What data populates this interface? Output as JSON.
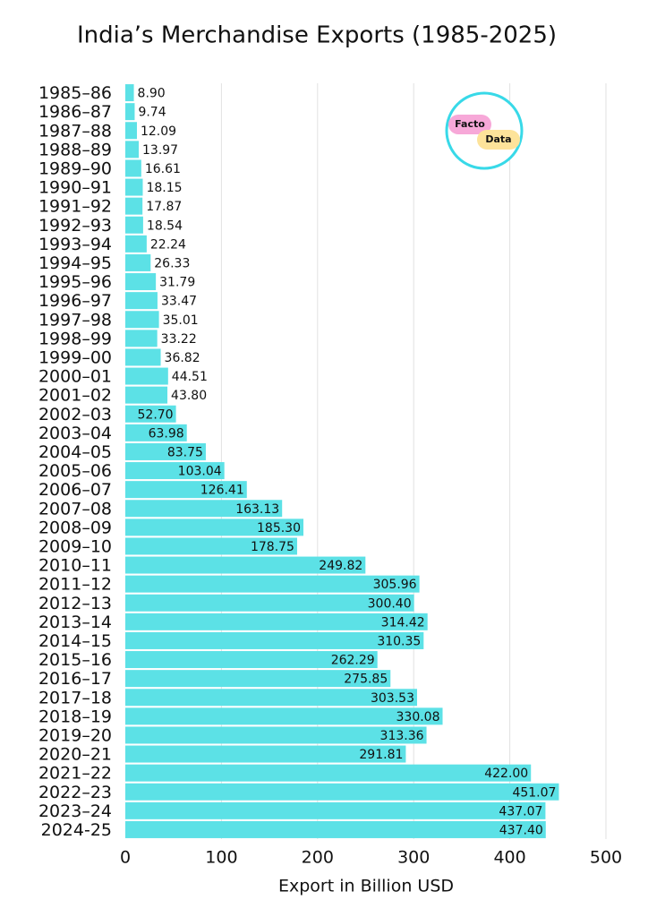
{
  "chart_data": {
    "type": "bar",
    "orientation": "horizontal",
    "title": "India’s Merchandise Exports (1985-2025)",
    "xlabel": "Export in Billion USD",
    "categories": [
      "1985–86",
      "1986–87",
      "1987–88",
      "1988–89",
      "1989–90",
      "1990–91",
      "1991–92",
      "1992–93",
      "1993–94",
      "1994–95",
      "1995–96",
      "1996–97",
      "1997–98",
      "1998–99",
      "1999–00",
      "2000–01",
      "2001–02",
      "2002–03",
      "2003–04",
      "2004–05",
      "2005–06",
      "2006–07",
      "2007–08",
      "2008–09",
      "2009–10",
      "2010–11",
      "2011–12",
      "2012–13",
      "2013–14",
      "2014–15",
      "2015–16",
      "2016–17",
      "2017–18",
      "2018–19",
      "2019–20",
      "2020–21",
      "2021–22",
      "2022–23",
      "2023–24",
      "2024-25"
    ],
    "values": [
      8.9,
      9.74,
      12.09,
      13.97,
      16.61,
      18.15,
      17.87,
      18.54,
      22.24,
      26.33,
      31.79,
      33.47,
      35.01,
      33.22,
      36.82,
      44.51,
      43.8,
      52.7,
      63.98,
      83.75,
      103.04,
      126.41,
      163.13,
      185.3,
      178.75,
      249.82,
      305.96,
      300.4,
      314.42,
      310.35,
      262.29,
      275.85,
      303.53,
      330.08,
      313.36,
      291.81,
      422,
      451.07,
      437.07,
      437.4
    ],
    "value_labels": [
      "8.90",
      "9.74",
      "12.09",
      "13.97",
      "16.61",
      "18.15",
      "17.87",
      "18.54",
      "22.24",
      "26.33",
      "31.79",
      "33.47",
      "35.01",
      "33.22",
      "36.82",
      "44.51",
      "43.80",
      "52.70",
      "63.98",
      "83.75",
      "103.04",
      "126.41",
      "163.13",
      "185.30",
      "178.75",
      "249.82",
      "305.96",
      "300.40",
      "314.42",
      "310.35",
      "262.29",
      "275.85",
      "303.53",
      "330.08",
      "313.36",
      "291.81",
      "422.00",
      "451.07",
      "437.07",
      "437.40"
    ],
    "color": "#5ce1e6",
    "xlim": [
      0,
      500
    ],
    "xticks": [
      0,
      100,
      200,
      300,
      400,
      500
    ],
    "grid": true,
    "logo": [
      "Facto",
      "Data"
    ]
  }
}
